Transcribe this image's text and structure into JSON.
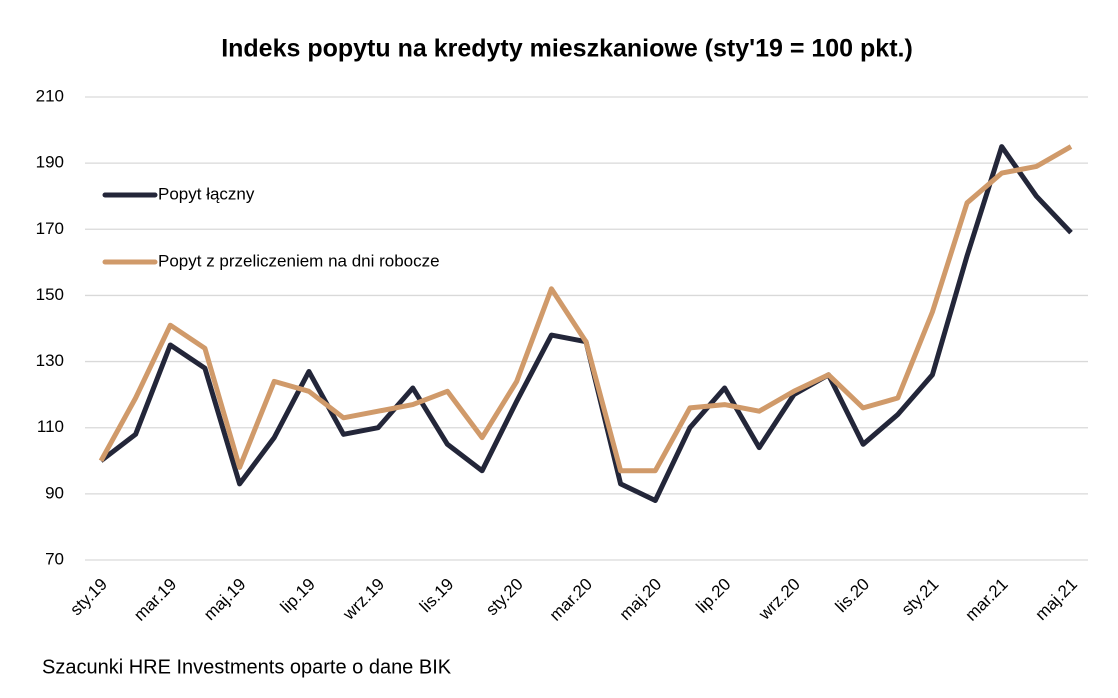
{
  "chart_data": {
    "type": "line",
    "title": "Indeks popytu na kredyty mieszkaniowe (sty'19 = 100 pkt.)",
    "source": "Szacunki HRE Investments oparte o dane BIK",
    "categories": [
      "sty.19",
      null,
      "mar.19",
      null,
      "maj.19",
      null,
      "lip.19",
      null,
      "wrz.19",
      null,
      "lis.19",
      null,
      "sty.20",
      null,
      "mar.20",
      null,
      "maj.20",
      null,
      "lip.20",
      null,
      "wrz.20",
      null,
      "lis.20",
      null,
      "sty.21",
      null,
      "mar.21",
      null,
      "maj.21"
    ],
    "series": [
      {
        "name": "Popyt łączny",
        "color": "#232639",
        "values": [
          100,
          108,
          135,
          128,
          93,
          107,
          127,
          108,
          110,
          122,
          105,
          97,
          118,
          138,
          136,
          93,
          88,
          110,
          122,
          104,
          120,
          126,
          105,
          114,
          126,
          162,
          195,
          180,
          169
        ]
      },
      {
        "name": "Popyt z przeliczeniem na dni robocze",
        "color": "#d09a6a",
        "values": [
          100,
          119,
          141,
          134,
          98,
          124,
          121,
          113,
          115,
          117,
          121,
          107,
          124,
          152,
          136,
          97,
          97,
          116,
          117,
          115,
          121,
          126,
          116,
          119,
          145,
          178,
          187,
          189,
          195
        ]
      }
    ],
    "ylim": [
      70,
      210
    ],
    "yticks": [
      70,
      90,
      110,
      130,
      150,
      170,
      190,
      210
    ],
    "grid": true
  }
}
